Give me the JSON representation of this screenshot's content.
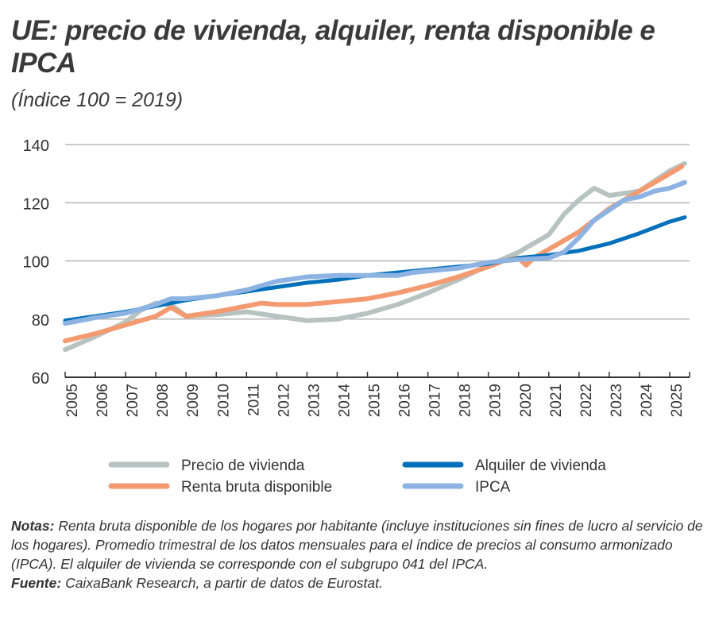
{
  "title": "UE: precio de vivienda, alquiler, renta disponible e IPCA",
  "subtitle": "(Índice 100 = 2019)",
  "chart_data": {
    "type": "line",
    "title": "UE: precio de vivienda, alquiler, renta disponible e IPCA",
    "subtitle": "(Índice 100 = 2019)",
    "xlabel": "",
    "ylabel": "",
    "xlim": [
      2005,
      2025.75
    ],
    "ylim": [
      60,
      140
    ],
    "yticks": [
      60,
      80,
      100,
      120,
      140
    ],
    "xticks": [
      "2005",
      "2006",
      "2007",
      "2008",
      "2009",
      "2010",
      "2011",
      "2012",
      "2013",
      "2014",
      "2015",
      "2016",
      "2017",
      "2018",
      "2019",
      "2020",
      "2021",
      "2022",
      "2023",
      "2024",
      "2025"
    ],
    "grid": "horizontal",
    "legend_placement": "bottom",
    "series": [
      {
        "name": "Precio de vivienda",
        "color": "#b7c3c1",
        "x": [
          2005,
          2006,
          2007,
          2007.5,
          2008,
          2008.5,
          2009,
          2010,
          2011,
          2012,
          2013,
          2014,
          2015,
          2016,
          2017,
          2018,
          2019,
          2020,
          2021,
          2021.5,
          2022,
          2022.5,
          2023,
          2024,
          2025,
          2025.5
        ],
        "y": [
          69.5,
          74,
          79,
          83,
          85.5,
          85,
          81,
          81.5,
          82.5,
          81,
          79.5,
          80,
          82,
          85,
          89,
          93.5,
          98.5,
          103,
          109,
          116,
          121,
          125,
          122.5,
          124,
          131,
          133.5
        ]
      },
      {
        "name": "Renta bruta disponible",
        "color": "#f39a71",
        "x": [
          2005,
          2006,
          2007,
          2008,
          2008.5,
          2009,
          2010,
          2011,
          2011.5,
          2012,
          2013,
          2014,
          2015,
          2016,
          2017,
          2018,
          2019,
          2019.5,
          2020,
          2020.25,
          2020.5,
          2021,
          2022,
          2023,
          2024,
          2025,
          2025.4
        ],
        "y": [
          72.5,
          75,
          78,
          81,
          84,
          81,
          82.5,
          84.5,
          85.5,
          85,
          85,
          86,
          87,
          89,
          91.5,
          94.5,
          98,
          100,
          101,
          98.5,
          101,
          104,
          110,
          118,
          124,
          130,
          132.5
        ]
      },
      {
        "name": "Alquiler de vivienda",
        "color": "#0070bb",
        "x": [
          2005,
          2006,
          2007,
          2008,
          2009,
          2010,
          2011,
          2012,
          2013,
          2014,
          2015,
          2016,
          2017,
          2018,
          2019,
          2020,
          2021,
          2022,
          2023,
          2024,
          2025,
          2025.5
        ],
        "y": [
          79.5,
          81,
          82.5,
          84.5,
          86.5,
          88,
          89.5,
          91,
          92.5,
          93.5,
          95,
          96,
          97,
          98,
          99,
          101,
          102,
          103.5,
          106,
          109.5,
          113.5,
          115
        ]
      },
      {
        "name": "IPCA",
        "color": "#8db3e2",
        "x": [
          2005,
          2006,
          2007,
          2008,
          2008.5,
          2009,
          2010,
          2011,
          2012,
          2013,
          2014,
          2015,
          2016,
          2016.5,
          2017,
          2018,
          2019,
          2020,
          2021,
          2021.5,
          2022,
          2022.5,
          2023,
          2023.5,
          2024,
          2024.5,
          2025,
          2025.5
        ],
        "y": [
          78.5,
          80.5,
          82,
          85,
          87,
          87,
          88,
          90,
          93,
          94.5,
          95,
          95,
          95,
          96,
          96.5,
          97.5,
          99.5,
          100.5,
          101,
          103,
          108,
          114,
          117.5,
          121,
          122,
          124,
          125,
          127
        ]
      }
    ]
  },
  "notes": {
    "notes_label": "Notas:",
    "notes_text": " Renta bruta disponible de los hogares por habitante (incluye instituciones sin fines de lucro al servicio de los hogares). Promedio trimestral de los datos mensuales para el índice de precios al consumo armonizado (IPCA). El alquiler de vivienda se corresponde con el subgrupo 041 del IPCA.",
    "source_label": "Fuente:",
    "source_text": " CaixaBank Research, a partir de datos de Eurostat."
  }
}
